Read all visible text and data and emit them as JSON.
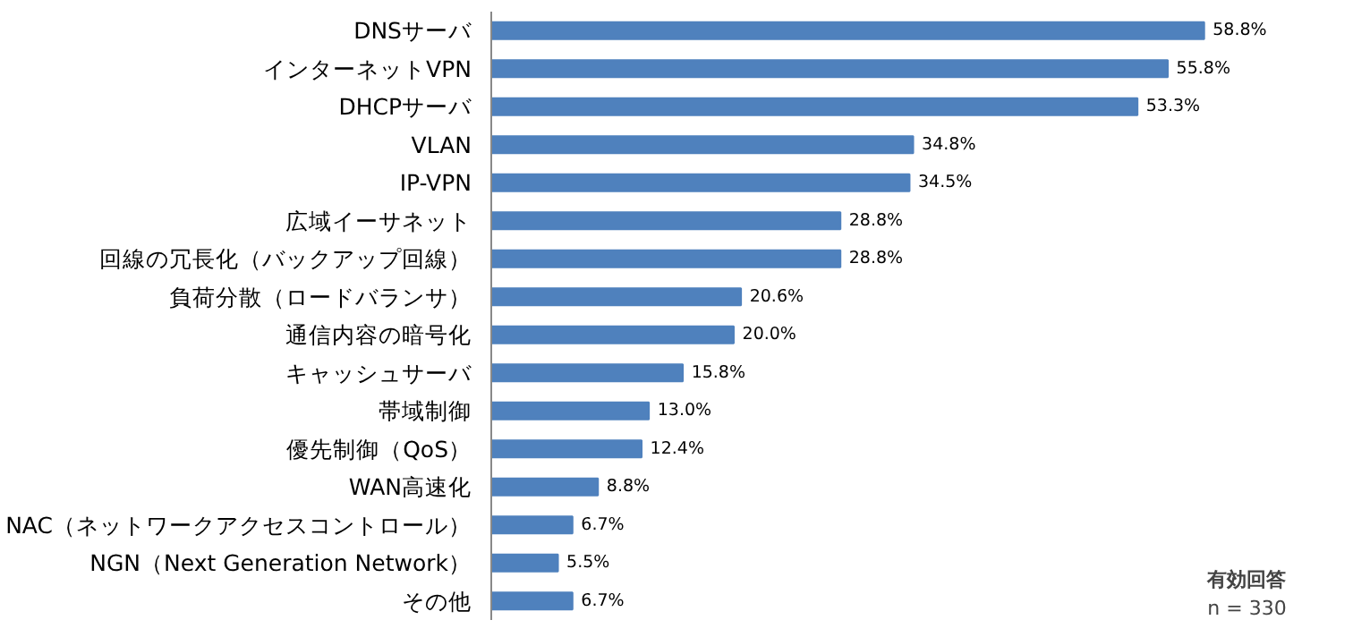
{
  "chart_data": {
    "type": "bar",
    "orientation": "horizontal",
    "color": "#4f81bd",
    "categories": [
      "DNSサーバ",
      "インターネットVPN",
      "DHCPサーバ",
      "VLAN",
      "IP-VPN",
      "広域イーサネット",
      "回線の冗長化（バックアップ回線）",
      "負荷分散（ロードバランサ）",
      "通信内容の暗号化",
      "キャッシュサーバ",
      "帯域制御",
      "優先制御（QoS）",
      "WAN高速化",
      "NAC（ネットワークアクセスコントロール）",
      "NGN（Next Generation Network）",
      "その他"
    ],
    "values": [
      58.8,
      55.8,
      53.3,
      34.8,
      34.5,
      28.8,
      28.8,
      20.6,
      20.0,
      15.8,
      13.0,
      12.4,
      8.8,
      6.7,
      5.5,
      6.7
    ],
    "value_labels": [
      "58.8%",
      "55.8%",
      "53.3%",
      "34.8%",
      "34.5%",
      "28.8%",
      "28.8%",
      "20.6%",
      "20.0%",
      "15.8%",
      "13.0%",
      "12.4%",
      "8.8%",
      "6.7%",
      "5.5%",
      "6.7%"
    ],
    "annotations": [
      "有効回答",
      "n = 330"
    ],
    "grid": false
  }
}
